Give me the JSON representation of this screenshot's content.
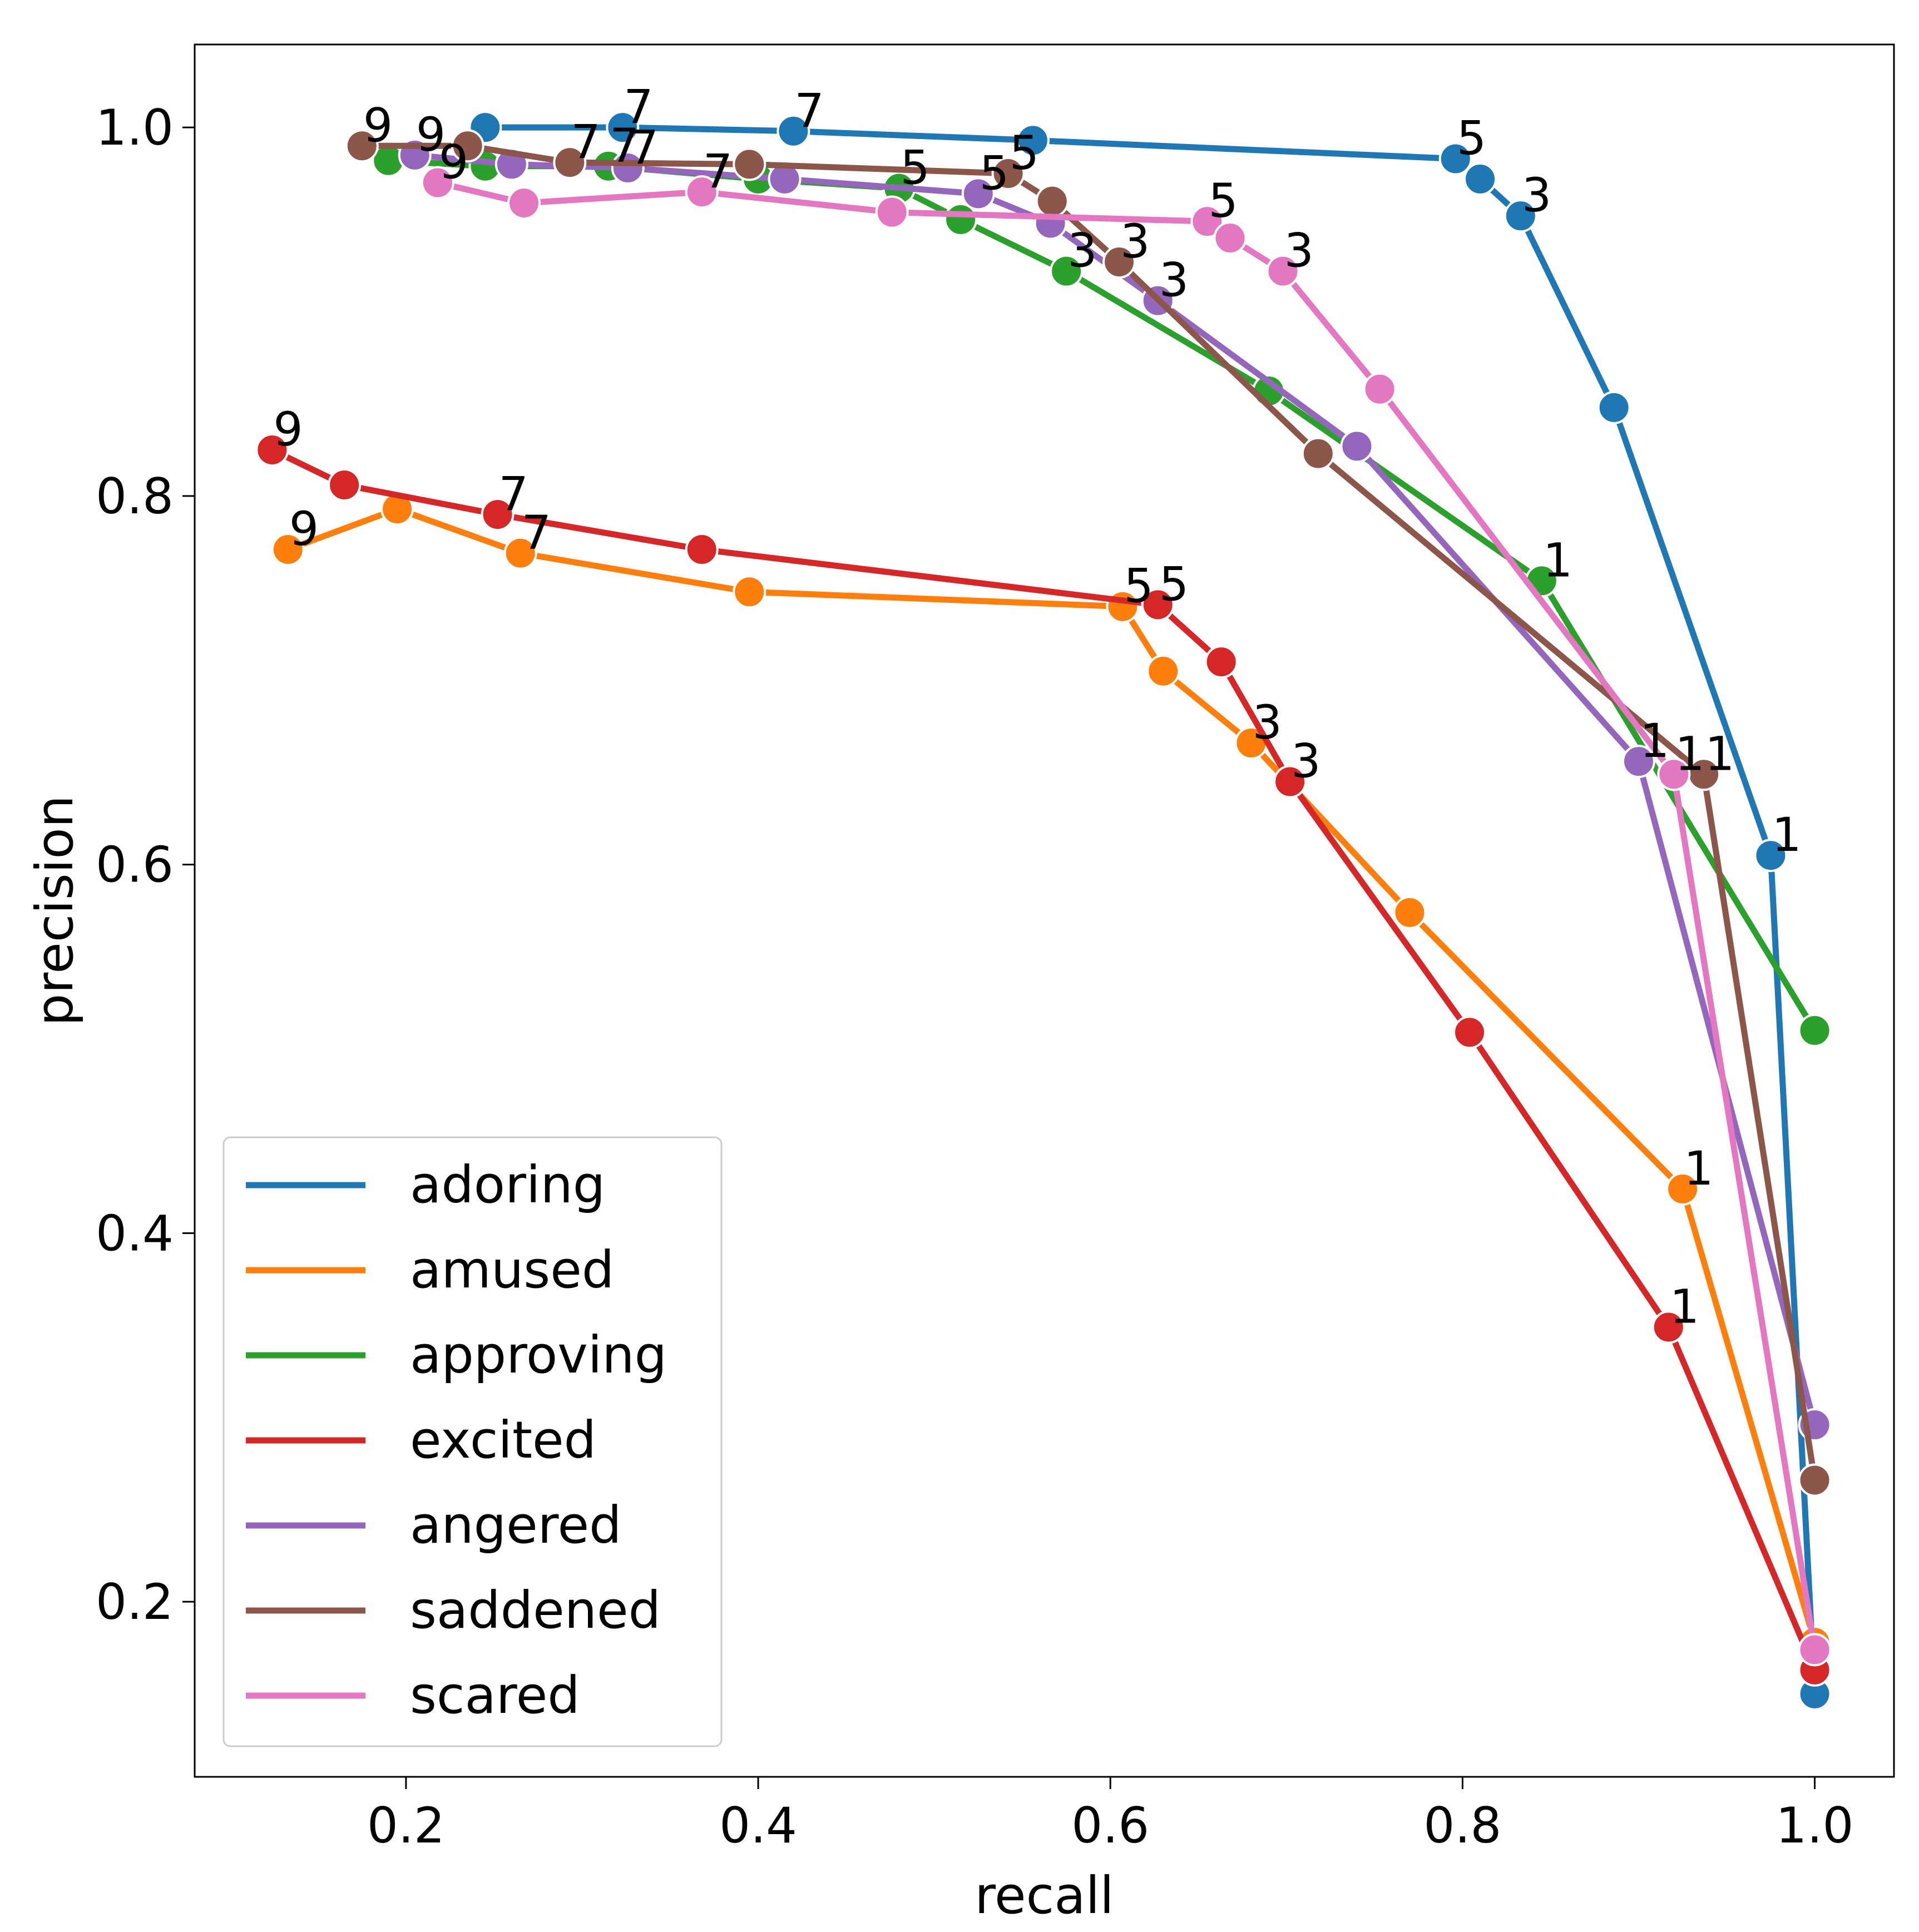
{
  "chart_data": {
    "type": "line",
    "xlabel": "recall",
    "ylabel": "precision",
    "xlim": [
      0.08,
      1.045
    ],
    "ylim": [
      0.105,
      1.045
    ],
    "xticks": [
      {
        "value": 0.2,
        "label": "0.2"
      },
      {
        "value": 0.4,
        "label": "0.4"
      },
      {
        "value": 0.6,
        "label": "0.6"
      },
      {
        "value": 0.8,
        "label": "0.8"
      },
      {
        "value": 1.0,
        "label": "1.0"
      }
    ],
    "yticks": [
      {
        "value": 0.2,
        "label": "0.2"
      },
      {
        "value": 0.4,
        "label": "0.4"
      },
      {
        "value": 0.6,
        "label": "0.6"
      },
      {
        "value": 0.8,
        "label": "0.8"
      },
      {
        "value": 1.0,
        "label": "1.0"
      }
    ],
    "legend_position": "lower-left",
    "series": [
      {
        "name": "adoring",
        "color": "#1f77b4",
        "points": [
          [
            0.245,
            1.0
          ],
          [
            0.323,
            1.0
          ],
          [
            0.42,
            0.998
          ],
          [
            0.556,
            0.993
          ],
          [
            0.796,
            0.983
          ],
          [
            0.81,
            0.972
          ],
          [
            0.833,
            0.952
          ],
          [
            0.886,
            0.848
          ],
          [
            0.975,
            0.605
          ],
          [
            1.0,
            0.15
          ]
        ],
        "labels": [
          null,
          "7",
          "7",
          null,
          "5",
          null,
          "3",
          null,
          "1",
          null
        ]
      },
      {
        "name": "amused",
        "color": "#ff7f0e",
        "points": [
          [
            0.133,
            0.771
          ],
          [
            0.195,
            0.793
          ],
          [
            0.265,
            0.769
          ],
          [
            0.395,
            0.748
          ],
          [
            0.607,
            0.74
          ],
          [
            0.63,
            0.705
          ],
          [
            0.68,
            0.666
          ],
          [
            0.77,
            0.574
          ],
          [
            0.925,
            0.424
          ],
          [
            1.0,
            0.178
          ]
        ],
        "labels": [
          "9",
          null,
          "7",
          null,
          "5",
          null,
          "3",
          null,
          "1",
          null
        ]
      },
      {
        "name": "approving",
        "color": "#2ca02c",
        "points": [
          [
            0.19,
            0.982
          ],
          [
            0.245,
            0.979
          ],
          [
            0.315,
            0.979
          ],
          [
            0.4,
            0.972
          ],
          [
            0.48,
            0.967
          ],
          [
            0.515,
            0.95
          ],
          [
            0.575,
            0.922
          ],
          [
            0.69,
            0.857
          ],
          [
            0.845,
            0.754
          ],
          [
            1.0,
            0.51
          ]
        ],
        "labels": [
          null,
          null,
          "7",
          null,
          "5",
          null,
          "3",
          null,
          "1",
          null
        ]
      },
      {
        "name": "excited",
        "color": "#d62728",
        "points": [
          [
            0.124,
            0.825
          ],
          [
            0.165,
            0.806
          ],
          [
            0.252,
            0.79
          ],
          [
            0.368,
            0.771
          ],
          [
            0.627,
            0.741
          ],
          [
            0.663,
            0.71
          ],
          [
            0.702,
            0.645
          ],
          [
            0.804,
            0.509
          ],
          [
            0.917,
            0.349
          ],
          [
            1.0,
            0.163
          ]
        ],
        "labels": [
          "9",
          null,
          "7",
          null,
          "5",
          null,
          "3",
          null,
          "1",
          null
        ]
      },
      {
        "name": "angered",
        "color": "#9467bd",
        "points": [
          [
            0.205,
            0.985
          ],
          [
            0.26,
            0.98
          ],
          [
            0.326,
            0.978
          ],
          [
            0.415,
            0.972
          ],
          [
            0.525,
            0.964
          ],
          [
            0.566,
            0.948
          ],
          [
            0.627,
            0.906
          ],
          [
            0.74,
            0.827
          ],
          [
            0.9,
            0.656
          ],
          [
            1.0,
            0.296
          ]
        ],
        "labels": [
          "9",
          null,
          "7",
          null,
          "5",
          null,
          "3",
          null,
          "1",
          null
        ]
      },
      {
        "name": "saddened",
        "color": "#8c564b",
        "points": [
          [
            0.175,
            0.99
          ],
          [
            0.235,
            0.99
          ],
          [
            0.293,
            0.981
          ],
          [
            0.395,
            0.98
          ],
          [
            0.542,
            0.975
          ],
          [
            0.567,
            0.96
          ],
          [
            0.605,
            0.927
          ],
          [
            0.718,
            0.823
          ],
          [
            0.937,
            0.649
          ],
          [
            1.0,
            0.266
          ]
        ],
        "labels": [
          "9",
          null,
          "7",
          null,
          "5",
          null,
          "3",
          null,
          "1",
          null
        ]
      },
      {
        "name": "scared",
        "color": "#e377c2",
        "points": [
          [
            0.218,
            0.97
          ],
          [
            0.267,
            0.959
          ],
          [
            0.368,
            0.965
          ],
          [
            0.476,
            0.954
          ],
          [
            0.655,
            0.949
          ],
          [
            0.668,
            0.94
          ],
          [
            0.698,
            0.922
          ],
          [
            0.753,
            0.858
          ],
          [
            0.92,
            0.649
          ],
          [
            1.0,
            0.174
          ]
        ],
        "labels": [
          "9",
          null,
          "7",
          null,
          "5",
          null,
          "3",
          null,
          "1",
          null
        ]
      }
    ]
  }
}
